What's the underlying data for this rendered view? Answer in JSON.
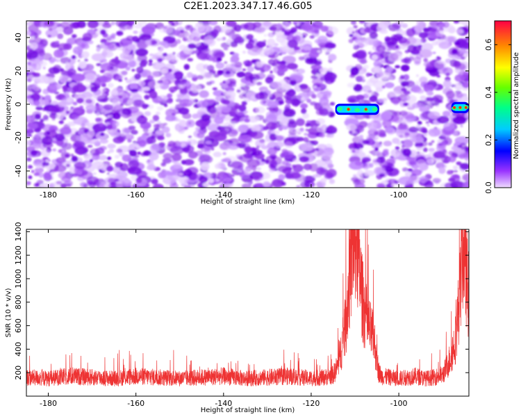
{
  "title": "C2E1.2023.347.17.46.G05",
  "chart_data": [
    {
      "type": "heatmap",
      "title": "C2E1.2023.347.17.46.G05",
      "xlabel": "Height of straight line (km)",
      "ylabel": "Frequency (Hz)",
      "xlim": [
        -185,
        -84
      ],
      "ylim": [
        -50,
        50
      ],
      "xticks": [
        -180,
        -160,
        -140,
        -120,
        -100
      ],
      "yticks": [
        -40,
        -20,
        0,
        20,
        40
      ],
      "grid": false,
      "colorbar": {
        "label": "Normalized spectral amplitude",
        "range": [
          0,
          0.7
        ],
        "ticks": [
          0.0,
          0.2,
          0.4,
          0.6
        ]
      },
      "features": [
        {
          "x_range": [
            -114.5,
            -104.5
          ],
          "frequency": -3,
          "peak_amplitude": 0.65
        },
        {
          "x_range": [
            -88,
            -84
          ],
          "frequency": -2,
          "peak_amplitude": 0.6
        }
      ],
      "gap_regions": [
        [
          -115,
          -111
        ]
      ]
    },
    {
      "type": "line",
      "xlabel": "Height of straight line (km)",
      "ylabel": "SNR (10 * v/v)",
      "xlim": [
        -185,
        -84
      ],
      "ylim": [
        0,
        1420
      ],
      "xticks": [
        -180,
        -160,
        -140,
        -120,
        -100
      ],
      "yticks": [
        200,
        400,
        600,
        800,
        1000,
        1200,
        1400
      ],
      "grid": false,
      "series": [
        {
          "color": "#ee3333",
          "x": [
            -185,
            -180,
            -175,
            -170,
            -165,
            -160,
            -155,
            -150,
            -145,
            -140,
            -135,
            -130,
            -125,
            -120,
            -117,
            -115,
            -114,
            -113,
            -112,
            -111.5,
            -111,
            -110.5,
            -110,
            -109.5,
            -109,
            -108.5,
            -108,
            -107,
            -106,
            -105.5,
            -105,
            -104.5,
            -104,
            -102,
            -100,
            -98,
            -96,
            -94,
            -92,
            -90,
            -89,
            -88,
            -87,
            -86.5,
            -86,
            -85.5,
            -85,
            -84.5,
            -84
          ],
          "values": [
            160,
            150,
            170,
            160,
            150,
            170,
            160,
            150,
            160,
            170,
            150,
            160,
            170,
            150,
            160,
            180,
            250,
            420,
            650,
            900,
            1100,
            1350,
            1420,
            1300,
            1100,
            900,
            750,
            600,
            520,
            450,
            300,
            200,
            170,
            160,
            150,
            160,
            170,
            150,
            160,
            180,
            250,
            350,
            500,
            700,
            900,
            1300,
            1250,
            1000,
            850
          ]
        }
      ]
    }
  ]
}
